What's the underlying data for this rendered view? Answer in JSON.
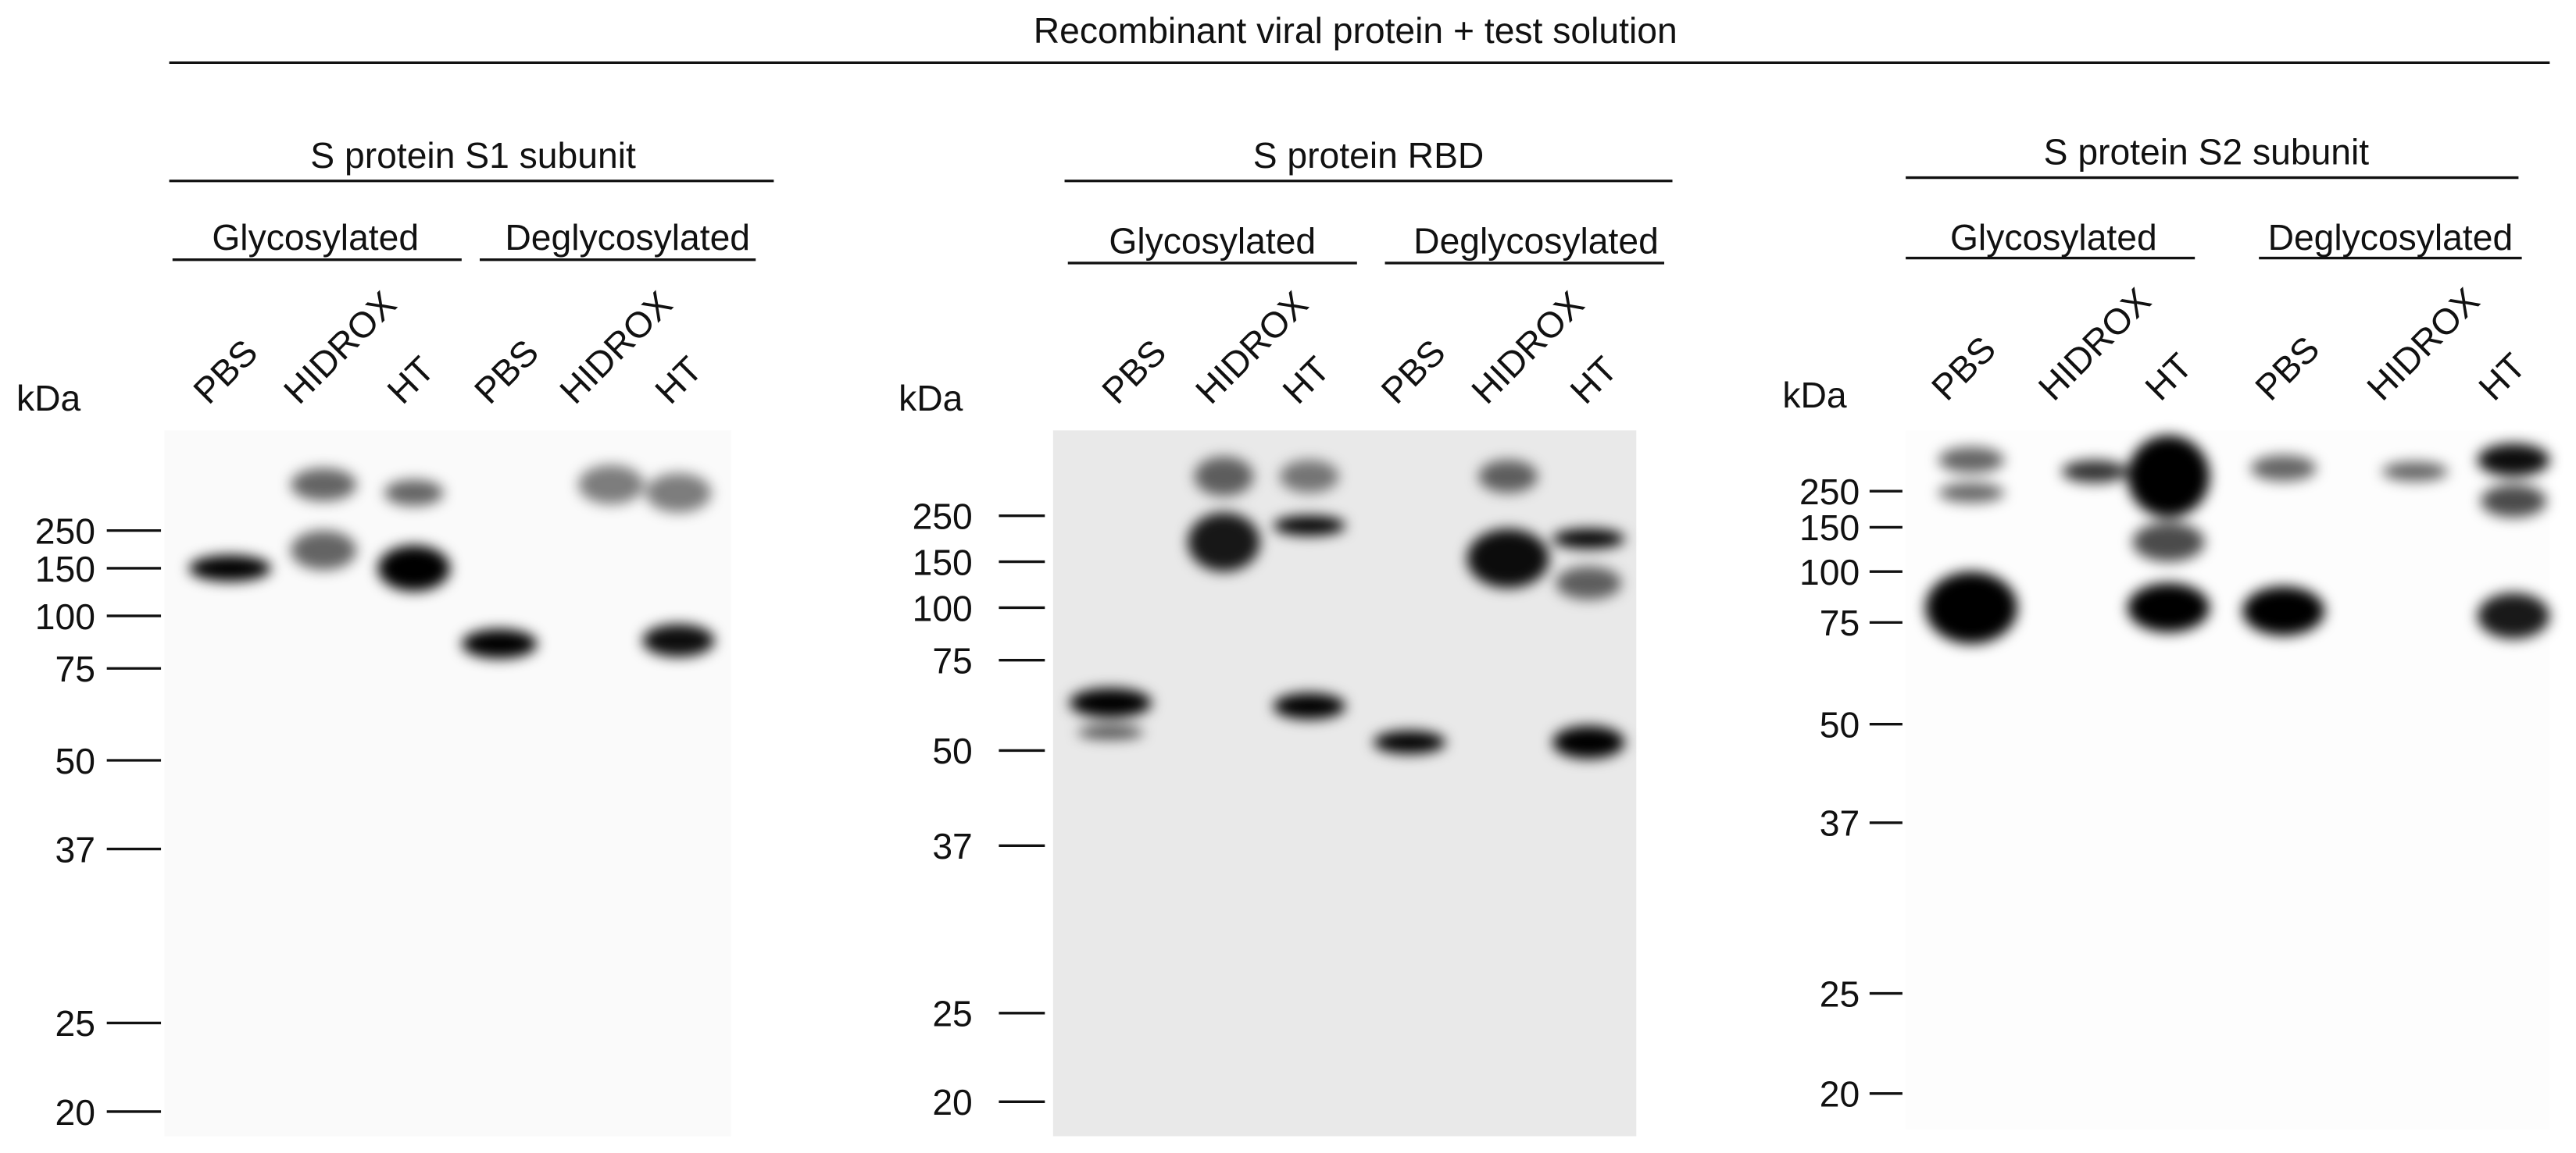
{
  "title": "Recombinant viral protein + test solution",
  "panels": [
    {
      "title": "S protein S1 subunit",
      "groups": [
        "Glycosylated",
        "Deglycosylated"
      ],
      "lanes": [
        "PBS",
        "HIDROX",
        "HT",
        "PBS",
        "HIDROX",
        "HT"
      ],
      "unit": "kDa",
      "markers": [
        250,
        150,
        100,
        75,
        50,
        37,
        25,
        20
      ]
    },
    {
      "title": "S protein RBD",
      "groups": [
        "Glycosylated",
        "Deglycosylated"
      ],
      "lanes": [
        "PBS",
        "HIDROX",
        "HT",
        "PBS",
        "HIDROX",
        "HT"
      ],
      "unit": "kDa",
      "markers": [
        250,
        150,
        100,
        75,
        50,
        37,
        25,
        20
      ]
    },
    {
      "title": "S protein S2 subunit",
      "groups": [
        "Glycosylated",
        "Deglycosylated"
      ],
      "lanes": [
        "PBS",
        "HIDROX",
        "HT",
        "PBS",
        "HIDROX",
        "HT"
      ],
      "unit": "kDa",
      "markers": [
        250,
        150,
        100,
        75,
        50,
        37,
        25,
        20
      ]
    }
  ]
}
